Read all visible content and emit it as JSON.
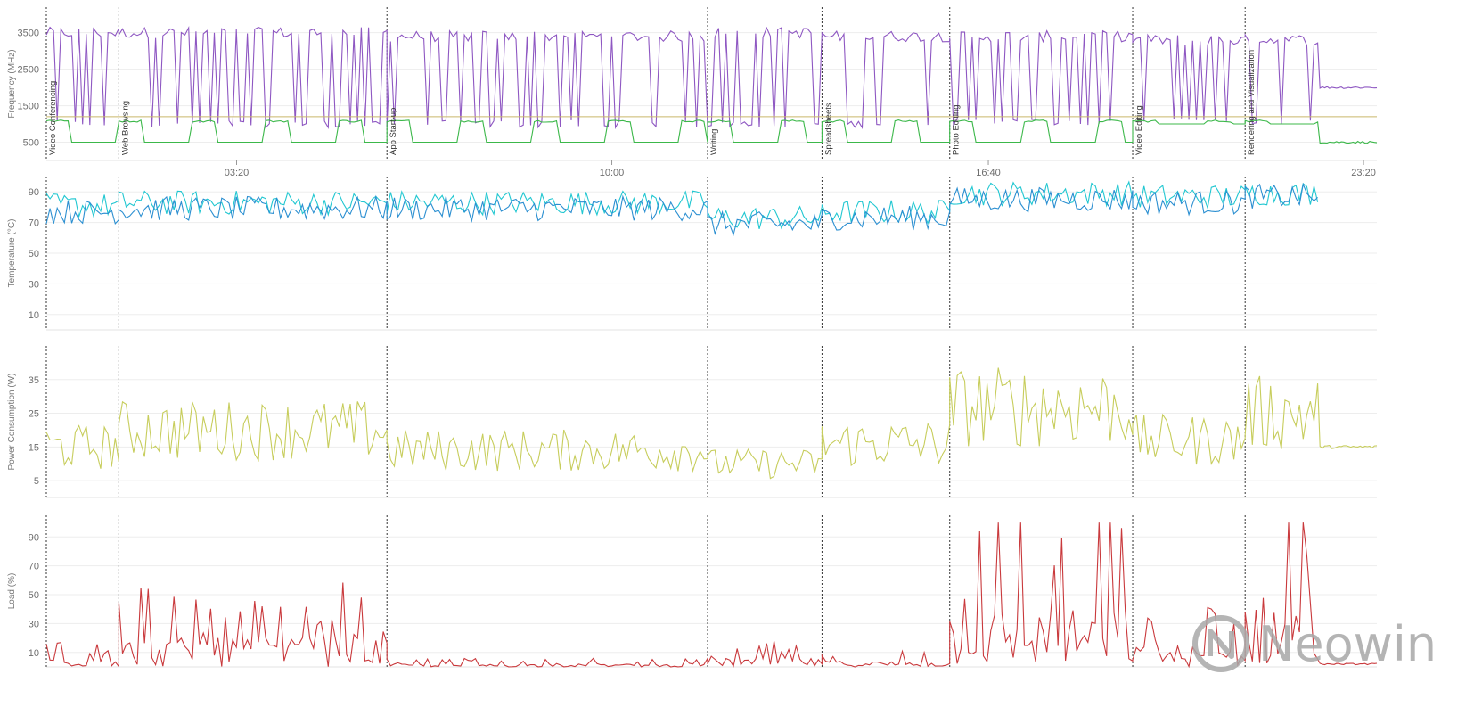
{
  "chart_data": [
    {
      "type": "line",
      "ylabel": "Frequency (MHz)",
      "yticks": [
        500,
        1500,
        2500,
        3500
      ],
      "ylim": [
        0,
        4200
      ],
      "grid": true,
      "xticks": [
        "03:20",
        "10:00",
        "16:40",
        "23:20"
      ],
      "segments": [
        "Video Conferencing",
        "Web Browsing",
        "App Start-up",
        "Writing",
        "Spreadsheets",
        "Photo Editing",
        "Video Editing",
        "Rendering and Visualization"
      ],
      "series": [
        {
          "color": "#8e57c2",
          "kind": "freq-core",
          "levels": [
            3500,
            3500,
            3400,
            3500,
            3400,
            3400,
            3300,
            3300
          ],
          "floor": [
            900,
            900,
            900,
            900,
            900,
            950,
            1000,
            1000
          ],
          "tail": 2000
        },
        {
          "color": "#3cb84a",
          "kind": "freq-base",
          "levels": [
            500,
            500,
            500,
            500,
            500,
            500,
            1000,
            1000
          ],
          "tail": 500
        },
        {
          "color": "#c9b86a",
          "kind": "constant",
          "value": 1200
        }
      ]
    },
    {
      "type": "line",
      "ylabel": "Temperature (°C)",
      "yticks": [
        10,
        30,
        50,
        70,
        90
      ],
      "ylim": [
        0,
        100
      ],
      "grid": true,
      "series": [
        {
          "color": "#21c7d1",
          "levels": [
            80,
            82,
            82,
            72,
            76,
            88,
            86,
            88
          ]
        },
        {
          "color": "#2b8fd1",
          "levels": [
            78,
            80,
            80,
            70,
            74,
            86,
            84,
            88
          ]
        }
      ]
    },
    {
      "type": "line",
      "ylabel": "Power Consumption (W)",
      "yticks": [
        5,
        15,
        25,
        35
      ],
      "ylim": [
        0,
        45
      ],
      "grid": true,
      "series": [
        {
          "color": "#c7cd5c",
          "levels": [
            15,
            20,
            14,
            10,
            16,
            27,
            17,
            25
          ],
          "tail": 15
        }
      ]
    },
    {
      "type": "line",
      "ylabel": "Load (%)",
      "yticks": [
        10,
        30,
        50,
        70,
        90
      ],
      "ylim": [
        0,
        105
      ],
      "grid": true,
      "series": [
        {
          "color": "#c9393c",
          "levels": [
            15,
            40,
            4,
            12,
            8,
            80,
            30,
            100
          ],
          "tail": 2
        }
      ]
    }
  ],
  "watermark": {
    "text": "Neowin",
    "icon": "neowin-logo-icon"
  }
}
